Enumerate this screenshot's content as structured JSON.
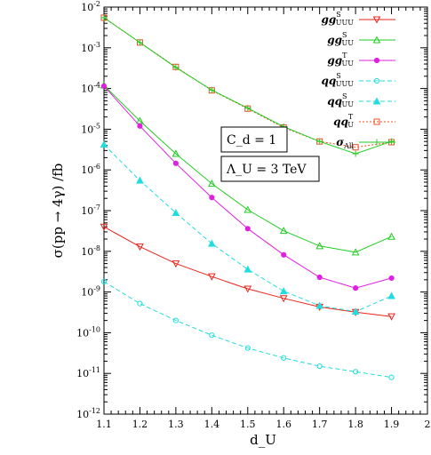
{
  "chart_data": {
    "type": "line",
    "xlabel": "d_U",
    "ylabel": "σ(pp → 4γ) /fb",
    "yscale": "log",
    "xlim": [
      1.1,
      2.0
    ],
    "ylim": [
      1e-12,
      0.01
    ],
    "x_ticks": [
      "1.1",
      "1.2",
      "1.3",
      "1.4",
      "1.5",
      "1.6",
      "1.7",
      "1.8",
      "1.9",
      "2"
    ],
    "y_ticks": [
      "10^-12",
      "10^-11",
      "10^-10",
      "10^-9",
      "10^-8",
      "10^-7",
      "10^-6",
      "10^-5",
      "10^-4",
      "10^-3",
      "10^-2"
    ],
    "legend_position": "top-right",
    "annotations": [
      "C_d = 1",
      "Λ_U = 3 TeV"
    ],
    "x": [
      1.1,
      1.2,
      1.3,
      1.4,
      1.5,
      1.6,
      1.7,
      1.8,
      1.9
    ],
    "series": [
      {
        "name": "gg S UUU",
        "color": "#e8231a",
        "marker": "triangle-down",
        "dash": "solid",
        "values": [
          4e-08,
          1.3e-08,
          5e-09,
          2.4e-09,
          1.2e-09,
          7e-10,
          4.3e-10,
          3.2e-10,
          2.5e-10
        ]
      },
      {
        "name": "gg S UU",
        "color": "#22cc22",
        "marker": "triangle-up",
        "dash": "solid",
        "values": [
          0.00012,
          1.6e-05,
          2.5e-06,
          4.6e-07,
          1.05e-07,
          3.2e-08,
          1.35e-08,
          9.5e-09,
          2.3e-08
        ]
      },
      {
        "name": "gg T UU",
        "color": "#e020e0",
        "marker": "circle-filled",
        "dash": "solid",
        "values": [
          0.000115,
          1.2e-05,
          1.45e-06,
          2.1e-07,
          3.6e-08,
          8.2e-09,
          2.3e-09,
          1.25e-09,
          2.2e-09
        ]
      },
      {
        "name": "qq S UUU",
        "color": "#22dddd",
        "marker": "circle-open",
        "dash": "dashed",
        "values": [
          1.8e-09,
          5.2e-10,
          2e-10,
          8.7e-11,
          4.2e-11,
          2.4e-11,
          1.5e-11,
          1.1e-11,
          8e-12
        ]
      },
      {
        "name": "qq S UU",
        "color": "#22dddd",
        "marker": "triangle-up-filled",
        "dash": "dashed",
        "values": [
          4.2e-06,
          5.5e-07,
          8.8e-08,
          1.55e-08,
          3.6e-09,
          1.05e-09,
          4.6e-10,
          3.3e-10,
          8e-10
        ]
      },
      {
        "name": "qq T U",
        "color": "#e85020",
        "marker": "square-open",
        "dash": "dotted",
        "values": [
          0.0055,
          0.00135,
          0.00034,
          9e-05,
          3.2e-05,
          1.1e-05,
          5e-06,
          3.6e-06,
          4.8e-06
        ]
      },
      {
        "name": "σ All",
        "color": "#22cc22",
        "marker": "plus",
        "dash": "solid",
        "values": [
          0.0055,
          0.00135,
          0.00033,
          9.2e-05,
          3.3e-05,
          1.15e-05,
          5e-06,
          2.5e-06,
          5e-06
        ]
      }
    ]
  }
}
